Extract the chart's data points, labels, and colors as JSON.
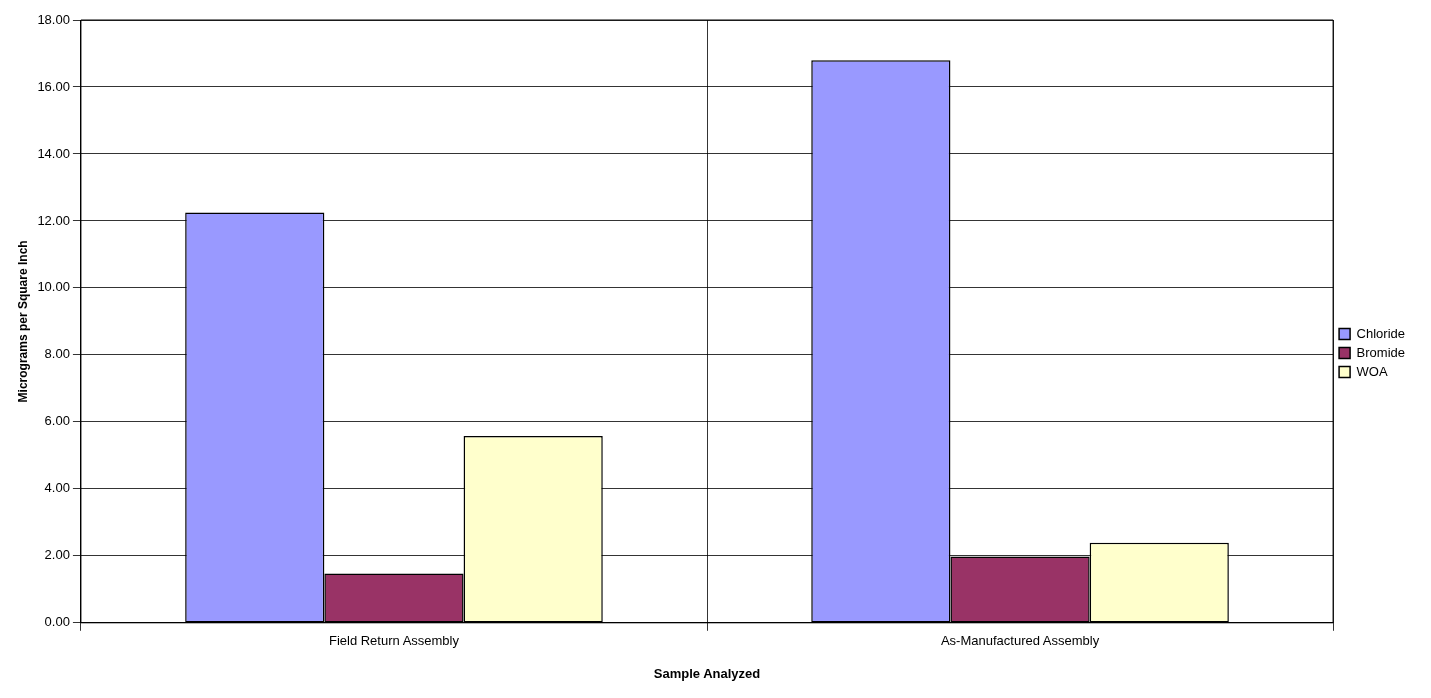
{
  "chart_data": {
    "type": "bar",
    "xlabel": "Sample Analyzed",
    "ylabel": "Micrograms per Square Inch",
    "categories": [
      "Field Return Assembly",
      "As-Manufactured Assembly"
    ],
    "series": [
      {
        "name": "Chloride",
        "color": "#9999ff",
        "values": [
          12.25,
          16.8
        ]
      },
      {
        "name": "Bromide",
        "color": "#993366",
        "values": [
          1.47,
          1.98
        ]
      },
      {
        "name": "WOA",
        "color": "#ffffcc",
        "values": [
          5.58,
          2.39
        ]
      }
    ],
    "ylim": [
      0,
      18
    ],
    "yticks": [
      {
        "value": 0,
        "label": "0.00"
      },
      {
        "value": 2,
        "label": "2.00"
      },
      {
        "value": 4,
        "label": "4.00"
      },
      {
        "value": 6,
        "label": "6.00"
      },
      {
        "value": 8,
        "label": "8.00"
      },
      {
        "value": 10,
        "label": "10.00"
      },
      {
        "value": 12,
        "label": "12.00"
      },
      {
        "value": 14,
        "label": "14.00"
      },
      {
        "value": 16,
        "label": "16.00"
      },
      {
        "value": 18,
        "label": "18.00"
      }
    ],
    "grid": true,
    "legend": "right"
  }
}
